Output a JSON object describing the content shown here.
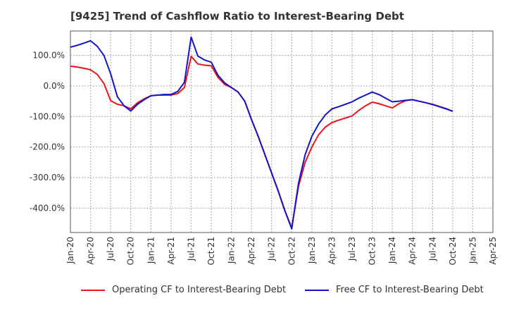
{
  "chart_data": {
    "type": "line",
    "title": "[9425]  Trend of Cashflow Ratio to Interest-Bearing Debt",
    "xlabel": "",
    "ylabel": "",
    "x_ticks": [
      "Jan-20",
      "Apr-20",
      "Jul-20",
      "Oct-20",
      "Jan-21",
      "Apr-21",
      "Jul-21",
      "Oct-21",
      "Jan-22",
      "Apr-22",
      "Jul-22",
      "Oct-22",
      "Jan-23",
      "Apr-23",
      "Jul-23",
      "Oct-23",
      "Jan-24",
      "Apr-24",
      "Jul-24",
      "Oct-24",
      "Jan-25",
      "Apr-25"
    ],
    "y_ticks": [
      "100.0%",
      "0.0%",
      "-100.0%",
      "-200.0%",
      "-300.0%",
      "-400.0%"
    ],
    "y_tick_values": [
      100,
      0,
      -100,
      -200,
      -300,
      -400
    ],
    "ylim": [
      -480,
      180
    ],
    "grid": true,
    "legend_position": "bottom",
    "x": [
      "Jan-20",
      "Feb-20",
      "Mar-20",
      "Apr-20",
      "May-20",
      "Jun-20",
      "Jul-20",
      "Aug-20",
      "Sep-20",
      "Oct-20",
      "Nov-20",
      "Dec-20",
      "Jan-21",
      "Feb-21",
      "Mar-21",
      "Apr-21",
      "May-21",
      "Jun-21",
      "Jul-21",
      "Aug-21",
      "Sep-21",
      "Oct-21",
      "Nov-21",
      "Dec-21",
      "Jan-22",
      "Feb-22",
      "Mar-22",
      "Apr-22",
      "May-22",
      "Jun-22",
      "Jul-22",
      "Aug-22",
      "Sep-22",
      "Oct-22",
      "Nov-22",
      "Dec-22",
      "Jan-23",
      "Feb-23",
      "Mar-23",
      "Apr-23",
      "May-23",
      "Jun-23",
      "Jul-23",
      "Aug-23",
      "Sep-23",
      "Oct-23",
      "Nov-23",
      "Dec-23",
      "Jan-24",
      "Feb-24",
      "Mar-24",
      "Apr-24",
      "May-24",
      "Jun-24",
      "Jul-24",
      "Aug-24",
      "Sep-24",
      "Oct-24"
    ],
    "series": [
      {
        "name": "Operating CF to Interest-Bearing Debt",
        "color": "#e8161a",
        "values": [
          65,
          62,
          58,
          53,
          38,
          8,
          -48,
          -60,
          -65,
          -75,
          -55,
          -42,
          -32,
          -30,
          -30,
          -30,
          -25,
          -5,
          97,
          72,
          68,
          66,
          28,
          5,
          -5,
          -20,
          -50,
          -110,
          -165,
          -225,
          -285,
          -345,
          -410,
          -465,
          -330,
          -250,
          -200,
          -160,
          -135,
          -120,
          -112,
          -105,
          -98,
          -80,
          -65,
          -53,
          -58,
          -65,
          -72,
          -58,
          -48,
          -45,
          -50,
          -55,
          -60,
          -67,
          -74,
          -83
        ]
      },
      {
        "name": "Free CF to Interest-Bearing Debt",
        "color": "#1414c8",
        "values": [
          127,
          133,
          140,
          148,
          130,
          100,
          40,
          -35,
          -65,
          -82,
          -60,
          -45,
          -32,
          -30,
          -28,
          -28,
          -18,
          12,
          160,
          98,
          85,
          78,
          35,
          10,
          -5,
          -20,
          -50,
          -110,
          -165,
          -225,
          -285,
          -345,
          -410,
          -468,
          -320,
          -225,
          -165,
          -125,
          -95,
          -75,
          -68,
          -60,
          -52,
          -40,
          -30,
          -20,
          -28,
          -40,
          -52,
          -50,
          -47,
          -45,
          -50,
          -55,
          -61,
          -68,
          -75,
          -83
        ]
      }
    ]
  }
}
